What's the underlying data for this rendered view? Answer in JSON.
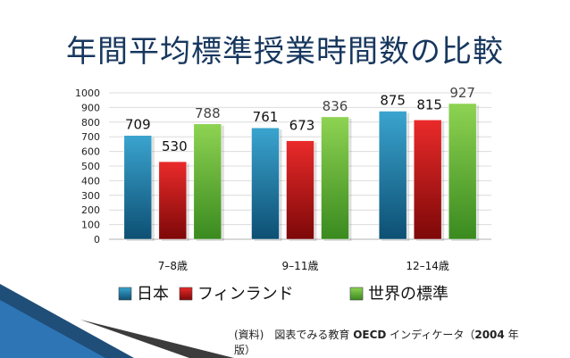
{
  "title": "年間平均標準授業時間数の比較",
  "chart_data": {
    "type": "bar",
    "categories": [
      "7–8歳",
      "9–11歳",
      "12–14歳"
    ],
    "series": [
      {
        "name": "日本",
        "values": [
          709,
          761,
          875
        ],
        "color": "#2a8db5"
      },
      {
        "name": "フィンランド",
        "values": [
          530,
          673,
          815
        ],
        "color": "#d11a1a"
      },
      {
        "name": "世界の標準",
        "values": [
          788,
          836,
          927
        ],
        "color": "#6dba3a"
      }
    ],
    "ylim": [
      0,
      1000
    ],
    "yticks": [
      0,
      100,
      200,
      300,
      400,
      500,
      600,
      700,
      800,
      900,
      1000
    ],
    "grid": true,
    "legend": "bottom"
  },
  "source": {
    "prefix": "(資料)　図表でみる教育 ",
    "oecd": "OECD",
    "middle": " インディケータ（",
    "year": "2004",
    "suffix1": " 年",
    "suffix2": "版）"
  }
}
